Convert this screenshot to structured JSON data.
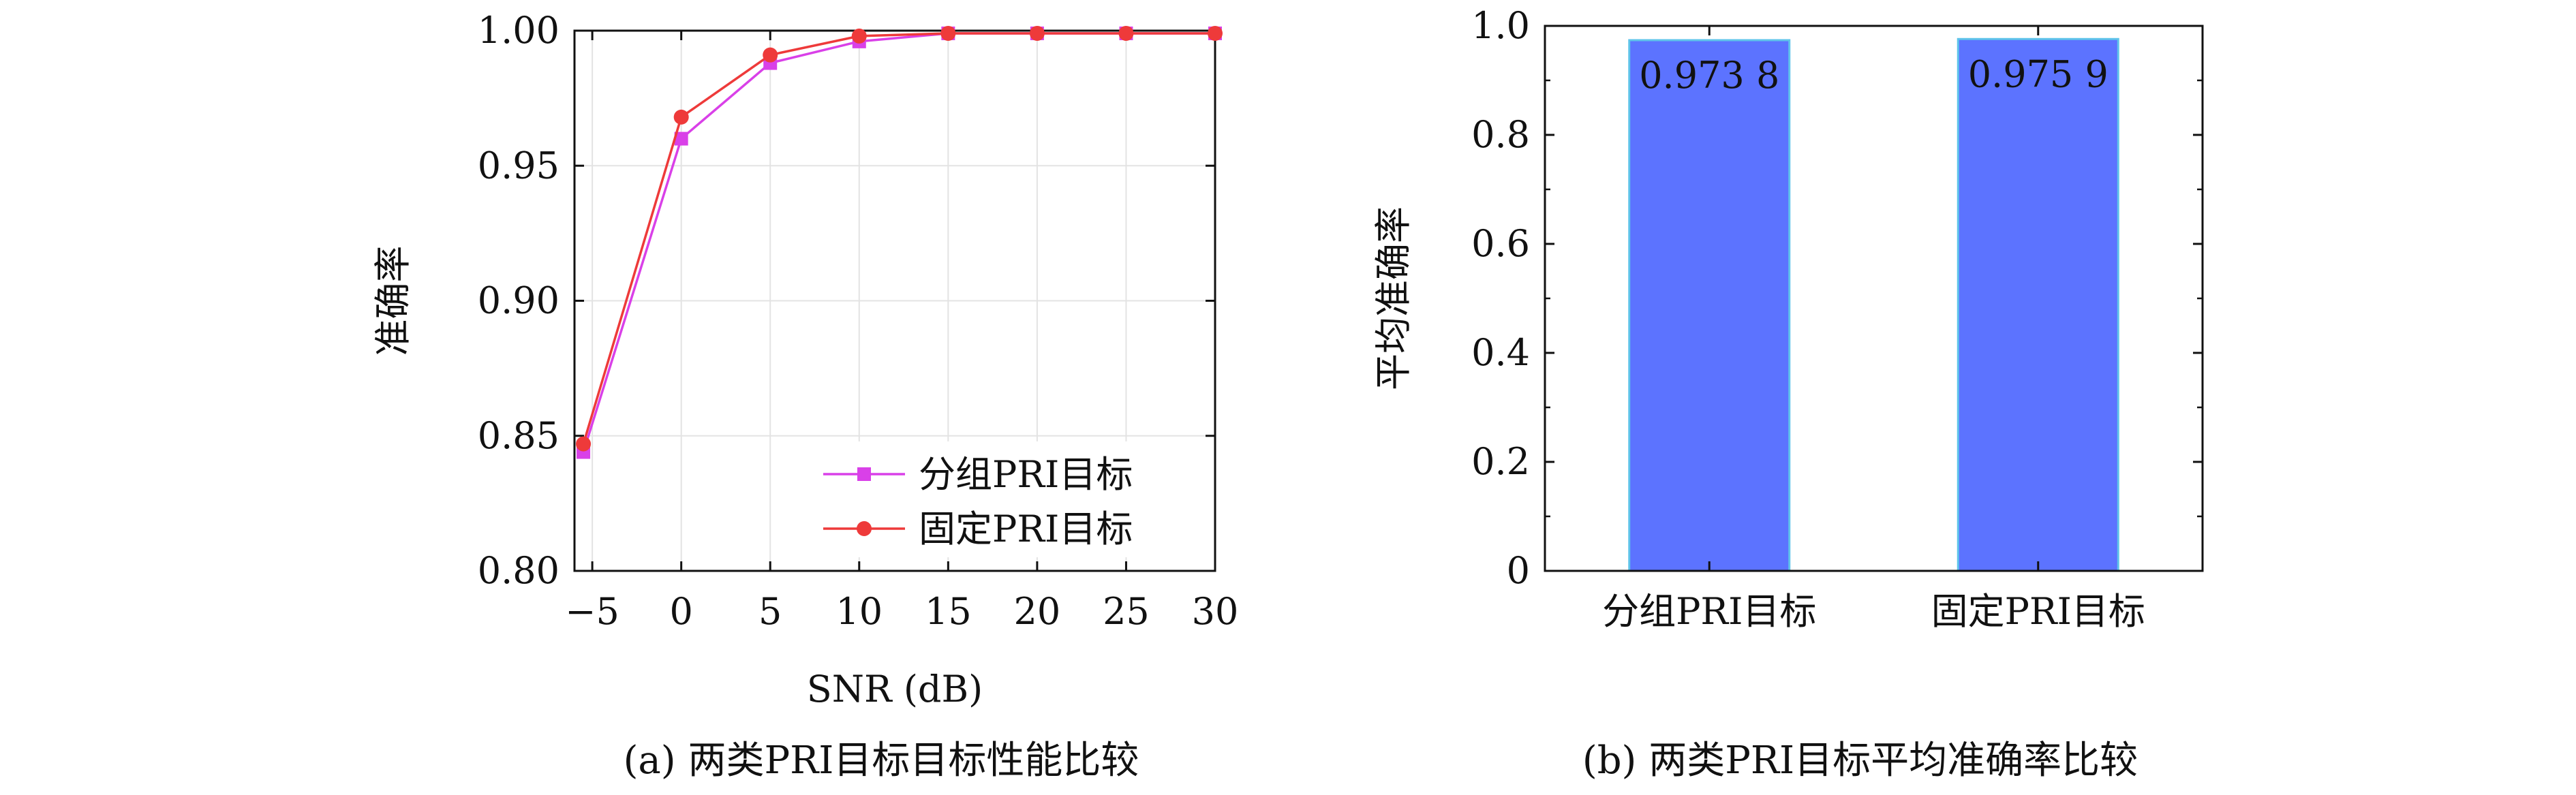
{
  "chart_data": [
    {
      "type": "line",
      "title": "",
      "caption": "(a) 两类PRI目标目标性能比较",
      "xlabel": "SNR (dB)",
      "ylabel": "准确率",
      "xlim": [
        -6,
        30
      ],
      "ylim": [
        0.8,
        1.0
      ],
      "xticks": [
        -5,
        0,
        5,
        10,
        15,
        20,
        25,
        30
      ],
      "xtick_labels": [
        "−5",
        "0",
        "5",
        "10",
        "15",
        "20",
        "25",
        "30"
      ],
      "yticks": [
        0.8,
        0.85,
        0.9,
        0.95,
        1.0
      ],
      "ytick_labels": [
        "0.80",
        "0.85",
        "0.90",
        "0.95",
        "1.00"
      ],
      "grid": true,
      "legend_position": "bottom-right",
      "x": [
        -5.5,
        0,
        5,
        10,
        15,
        20,
        25,
        30
      ],
      "series": [
        {
          "name": "分组PRI目标",
          "color": "#d940e8",
          "marker": "square",
          "values": [
            0.844,
            0.96,
            0.988,
            0.996,
            0.999,
            0.999,
            0.999,
            0.999
          ]
        },
        {
          "name": "固定PRI目标",
          "color": "#ee3a3a",
          "marker": "circle",
          "values": [
            0.847,
            0.968,
            0.991,
            0.998,
            0.999,
            0.999,
            0.999,
            0.999
          ]
        }
      ]
    },
    {
      "type": "bar",
      "title": "",
      "caption": "(b) 两类PRI目标平均准确率比较",
      "xlabel": "",
      "ylabel": "平均准确率",
      "ylim": [
        0,
        1.0
      ],
      "yticks": [
        0,
        0.2,
        0.4,
        0.6,
        0.8,
        1.0
      ],
      "ytick_labels": [
        "0",
        "0.2",
        "0.4",
        "0.6",
        "0.8",
        "1.0"
      ],
      "grid": false,
      "bar_color": "#5c73ff",
      "bar_edge_color": "#5fc4ea",
      "categories": [
        "分组PRI目标",
        "固定PRI目标"
      ],
      "values": [
        0.9738,
        0.9759
      ],
      "value_labels": [
        "0.973 8",
        "0.975 9"
      ]
    }
  ]
}
